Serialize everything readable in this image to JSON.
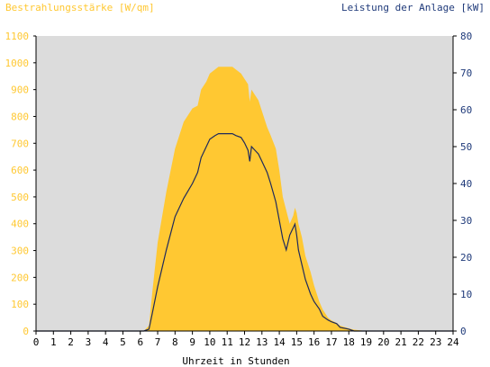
{
  "chart_data": {
    "type": "area",
    "ylabel_left": "Bestrahlungsstärke [W/qm]",
    "ylabel_right": "Leistung der Anlage [kW]",
    "xlabel": "Uhrzeit in Stunden",
    "xlim": [
      0,
      24
    ],
    "ylim_left": [
      0,
      1100
    ],
    "ylim_right": [
      0,
      80
    ],
    "x_ticks": [
      "0",
      "1",
      "2",
      "3",
      "4",
      "5",
      "6",
      "7",
      "8",
      "9",
      "10",
      "11",
      "12",
      "13",
      "14",
      "15",
      "16",
      "17",
      "18",
      "19",
      "20",
      "21",
      "22",
      "23",
      "24"
    ],
    "y_left_ticks": [
      "0",
      "100",
      "200",
      "300",
      "400",
      "500",
      "600",
      "700",
      "800",
      "900",
      "1000",
      "1100"
    ],
    "y_right_ticks": [
      "0",
      "10",
      "20",
      "30",
      "40",
      "50",
      "60",
      "70",
      "80"
    ],
    "grid": false,
    "colors": {
      "irradiance": "#ffc832",
      "power": "#1f2a5c",
      "plot_background": "#dcdcdc",
      "left_axis": "#ffc832",
      "right_axis": "#1f3a7a",
      "frame": "#000000"
    },
    "series": [
      {
        "axis": "left",
        "style": "area",
        "x": [
          0,
          6.2,
          6.5,
          6.7,
          7.0,
          7.5,
          8.0,
          8.5,
          9.0,
          9.3,
          9.5,
          9.8,
          10.0,
          10.3,
          10.5,
          10.8,
          11.0,
          11.3,
          11.5,
          11.8,
          12.0,
          12.2,
          12.3,
          12.4,
          12.6,
          12.8,
          13.0,
          13.3,
          13.5,
          13.8,
          14.0,
          14.2,
          14.4,
          14.6,
          14.8,
          14.9,
          15.0,
          15.1,
          15.3,
          15.5,
          15.8,
          16.0,
          16.3,
          16.5,
          16.8,
          17.0,
          17.3,
          17.5,
          18.0,
          18.3,
          18.6,
          19.0,
          24
        ],
        "y": [
          0,
          0,
          20,
          150,
          330,
          520,
          680,
          780,
          830,
          840,
          900,
          930,
          960,
          975,
          985,
          985,
          985,
          985,
          975,
          960,
          940,
          920,
          855,
          900,
          880,
          860,
          820,
          760,
          730,
          680,
          600,
          500,
          450,
          400,
          430,
          460,
          440,
          400,
          350,
          280,
          220,
          170,
          110,
          80,
          50,
          40,
          30,
          20,
          10,
          5,
          3,
          0,
          0
        ]
      },
      {
        "axis": "right",
        "style": "line",
        "x": [
          0,
          6.2,
          6.5,
          6.7,
          7.0,
          7.5,
          8.0,
          8.5,
          9.0,
          9.3,
          9.5,
          9.8,
          10.0,
          10.3,
          10.5,
          10.8,
          11.0,
          11.3,
          11.5,
          11.8,
          12.0,
          12.2,
          12.3,
          12.4,
          12.6,
          12.8,
          13.0,
          13.3,
          13.5,
          13.8,
          14.0,
          14.2,
          14.4,
          14.6,
          14.8,
          14.9,
          15.0,
          15.1,
          15.3,
          15.5,
          15.8,
          16.0,
          16.3,
          16.5,
          16.8,
          17.0,
          17.3,
          17.5,
          18.0,
          18.3,
          18.6,
          19.0,
          24
        ],
        "y": [
          0,
          0,
          0.5,
          5,
          12,
          22,
          31,
          36,
          40,
          43,
          47,
          50,
          52,
          53,
          53.5,
          53.5,
          53.5,
          53.5,
          53,
          52.5,
          51,
          49,
          46,
          50,
          49,
          48,
          46,
          43,
          40,
          35,
          30,
          25,
          22,
          26,
          28,
          29,
          26,
          22,
          18,
          14,
          10,
          8,
          6,
          4,
          3,
          2.5,
          2,
          1,
          0.5,
          0,
          0,
          0,
          0
        ]
      }
    ]
  }
}
